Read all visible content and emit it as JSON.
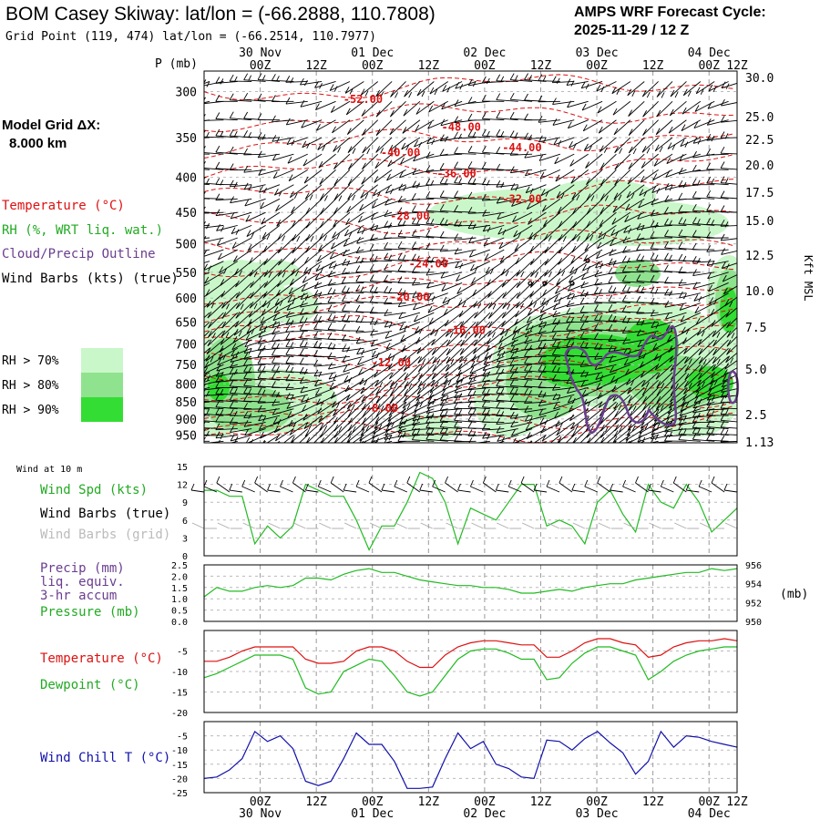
{
  "header": {
    "title": "BOM Casey Skiway:  lat/lon = (-66.2888, 110.7808)",
    "subtitle": "Grid Point (119, 474) lat/lon = (-66.2514, 110.7977)",
    "cycle_line1": "AMPS WRF Forecast Cycle:",
    "cycle_line2": "2025-11-29 / 12  Z"
  },
  "side_labels": {
    "model_grid": "Model Grid ΔX:",
    "grid_km": "8.000 km",
    "temperature": "Temperature (°C)",
    "rh": "RH (%, WRT liq. wat.)",
    "cloud": "Cloud/Precip Outline",
    "wind_barbs": "Wind Barbs (kts) (true)",
    "rh70": "RH > 70%",
    "rh80": "RH > 80%",
    "rh90": "RH > 90%",
    "kft_msl": "Kft MSL",
    "p_mb": "P (mb)"
  },
  "panel_labels": {
    "wind_10m": "Wind at 10 m",
    "wind_spd": "Wind Spd (kts)",
    "wind_barbs_true": "Wind Barbs (true)",
    "wind_barbs_grid": "Wind Barbs (grid)",
    "precip": "Precip (mm)",
    "liq_equiv": "liq. equiv.",
    "accum": "3-hr accum",
    "pressure": "Pressure (mb)",
    "mb_unit": "(mb)",
    "temperature": "Temperature (°C)",
    "dewpoint": "Dewpoint (°C)",
    "wind_chill": "Wind Chill T (°C)"
  },
  "colors": {
    "temperature": "#dd1111",
    "rh70": "#c9f7c9",
    "rh80": "#8fe38f",
    "rh90": "#33dd33",
    "green_line": "#22bb22",
    "cloud": "#6a3d8f",
    "wind_chill": "#1111aa",
    "grid_barb": "#aaaaaa"
  },
  "chart_data": {
    "type": "meteogram",
    "time_axis": {
      "hours_range": [
        0,
        114
      ],
      "ticks": [
        {
          "hour": 0,
          "label": "",
          "date": ""
        },
        {
          "hour": 12,
          "label": "00Z",
          "date": "30 Nov"
        },
        {
          "hour": 24,
          "label": "12Z",
          "date": ""
        },
        {
          "hour": 36,
          "label": "00Z",
          "date": "01 Dec"
        },
        {
          "hour": 48,
          "label": "12Z",
          "date": ""
        },
        {
          "hour": 60,
          "label": "00Z",
          "date": "02 Dec"
        },
        {
          "hour": 72,
          "label": "12Z",
          "date": ""
        },
        {
          "hour": 84,
          "label": "00Z",
          "date": "03 Dec"
        },
        {
          "hour": 96,
          "label": "12Z",
          "date": ""
        },
        {
          "hour": 108,
          "label": "00Z",
          "date": "04 Dec"
        },
        {
          "hour": 114,
          "label": "12Z",
          "date": ""
        }
      ]
    },
    "cross_section": {
      "pressure_range": [
        975,
        280
      ],
      "pressure_ticks": [
        300,
        350,
        400,
        450,
        500,
        550,
        600,
        650,
        700,
        750,
        800,
        850,
        900,
        950
      ],
      "height_ticks_kft": [
        "30.0",
        "25.0",
        "22.5",
        "20.0",
        "17.5",
        "15.0",
        "12.5",
        "10.0",
        "7.5",
        "5.0",
        "2.5",
        "1.13"
      ],
      "temperature_contours": [
        {
          "label": "-52.00",
          "hour": 34,
          "p": 308
        },
        {
          "label": "-48.00",
          "hour": 55,
          "p": 338
        },
        {
          "label": "-44.00",
          "hour": 68,
          "p": 362
        },
        {
          "label": "-40.00",
          "hour": 42,
          "p": 368
        },
        {
          "label": "-36.00",
          "hour": 54,
          "p": 395
        },
        {
          "label": "-32.00",
          "hour": 68,
          "p": 430
        },
        {
          "label": "-28.00",
          "hour": 44,
          "p": 455
        },
        {
          "label": "-24.00",
          "hour": 48,
          "p": 535
        },
        {
          "label": "-20.00",
          "hour": 44,
          "p": 598
        },
        {
          "label": "-16.00",
          "hour": 56,
          "p": 668
        },
        {
          "label": "-12.00",
          "hour": 40,
          "p": 745
        },
        {
          "label": "-8.00",
          "hour": 38,
          "p": 868
        }
      ]
    },
    "wind_speed_10m": {
      "ylim": [
        0,
        15
      ],
      "yticks": [
        0,
        3,
        6,
        9,
        12,
        15
      ],
      "values": [
        11,
        11,
        10,
        10,
        2,
        5,
        3,
        5,
        12,
        11,
        10,
        10,
        6,
        1,
        5,
        5,
        9,
        14,
        13,
        9,
        2,
        8,
        7,
        6,
        9,
        12,
        12,
        5,
        6,
        5,
        2,
        9,
        11,
        7,
        4,
        12,
        9,
        8,
        12,
        9,
        4,
        6,
        8
      ]
    },
    "precip_pressure": {
      "precip_ylim": [
        0,
        2.5
      ],
      "precip_yticks": [
        "0.0",
        "0.5",
        "1.0",
        "1.5",
        "2.0",
        "2.5"
      ],
      "pressure_ylim": [
        950,
        956
      ],
      "pressure_yticks": [
        "950",
        "952",
        "954",
        "956"
      ],
      "pressure_values": [
        952.6,
        953.6,
        953.2,
        953.2,
        953.6,
        953.8,
        953.6,
        953.8,
        954.6,
        954.6,
        954.4,
        955.0,
        955.4,
        955.6,
        955.2,
        955.2,
        954.8,
        954.4,
        954.2,
        954.0,
        953.8,
        953.8,
        953.6,
        953.6,
        953.4,
        953.0,
        953.0,
        953.2,
        953.4,
        953.2,
        953.6,
        953.8,
        954.0,
        954.0,
        954.4,
        954.6,
        954.8,
        955.0,
        955.2,
        955.2,
        955.6,
        955.4,
        955.6
      ]
    },
    "temp_dewpoint": {
      "ylim": [
        -20,
        0
      ],
      "yticks": [
        -20,
        -15,
        -10,
        -5
      ],
      "temperature": [
        -7.5,
        -7.5,
        -6.5,
        -5,
        -4,
        -4,
        -4,
        -4,
        -7,
        -8,
        -8,
        -7.5,
        -5,
        -4,
        -4,
        -5,
        -7.5,
        -9,
        -9,
        -6,
        -4,
        -3,
        -2.5,
        -2.5,
        -3,
        -3.5,
        -3.5,
        -6.5,
        -6.5,
        -5,
        -3,
        -2,
        -2,
        -3,
        -3.5,
        -6.5,
        -6,
        -4,
        -3,
        -2.5,
        -2.5,
        -2,
        -2.5
      ],
      "dewpoint": [
        -11.5,
        -10.5,
        -9,
        -7.5,
        -6,
        -6,
        -6,
        -7,
        -14,
        -15.5,
        -15,
        -10,
        -8.5,
        -7,
        -7.5,
        -11,
        -15,
        -16,
        -15,
        -11,
        -7,
        -5,
        -4.5,
        -4.5,
        -5.5,
        -7,
        -7,
        -12,
        -11.5,
        -8,
        -5.5,
        -4,
        -4,
        -5,
        -6,
        -12,
        -10,
        -7.5,
        -6,
        -5,
        -4.5,
        -4,
        -4
      ]
    },
    "wind_chill": {
      "ylim": [
        -25,
        0
      ],
      "yticks": [
        -25,
        -20,
        -15,
        -10,
        -5
      ],
      "values": [
        -20,
        -19.5,
        -17,
        -13,
        -3.5,
        -7,
        -5,
        -9.5,
        -21,
        -22.5,
        -21,
        -13,
        -4,
        -8,
        -8,
        -14,
        -23.5,
        -23.5,
        -23,
        -13,
        -4,
        -9.5,
        -7,
        -15,
        -16.5,
        -19.5,
        -20,
        -6.5,
        -7,
        -10,
        -6,
        -3.5,
        -7.5,
        -11,
        -18.5,
        -14,
        -3.5,
        -9,
        -5,
        -5.5,
        -7,
        -8,
        -9
      ]
    }
  }
}
